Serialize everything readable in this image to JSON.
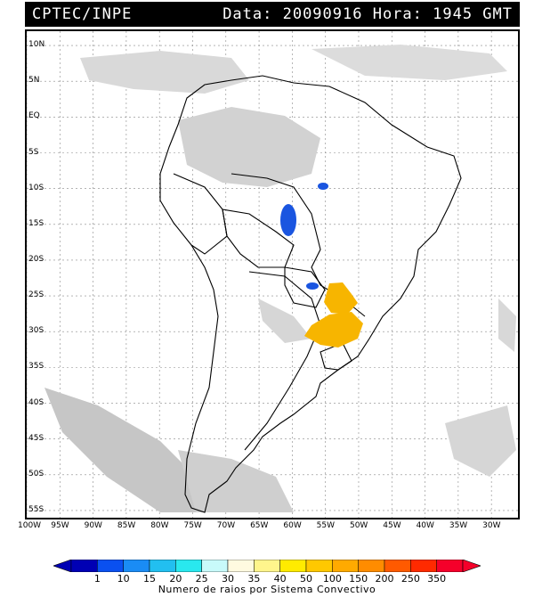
{
  "header": {
    "source": "CPTEC/INPE",
    "datetime": "Data: 20090916 Hora: 1945 GMT"
  },
  "map": {
    "lat_labels": [
      "10N",
      "5N",
      "EQ",
      "5S",
      "10S",
      "15S",
      "20S",
      "25S",
      "30S",
      "35S",
      "40S",
      "45S",
      "50S",
      "55S"
    ],
    "lat_values": [
      10,
      5,
      0,
      -5,
      -10,
      -15,
      -20,
      -25,
      -30,
      -35,
      -40,
      -45,
      -50,
      -55
    ],
    "lon_labels": [
      "100W",
      "95W",
      "90W",
      "85W",
      "80W",
      "75W",
      "70W",
      "65W",
      "60W",
      "55W",
      "50W",
      "45W",
      "40W",
      "35W",
      "30W"
    ],
    "lon_values": [
      -100,
      -95,
      -90,
      -85,
      -80,
      -75,
      -70,
      -65,
      -60,
      -55,
      -50,
      -45,
      -40,
      -35,
      -30
    ],
    "extent": {
      "lon_min": -100,
      "lon_max": -26,
      "lat_min": -56,
      "lat_max": 12
    },
    "grid": true,
    "cloud_color": "#c8c8c8",
    "lightning_clusters": [
      {
        "name": "north-blue",
        "color": "#1a55e0"
      },
      {
        "name": "mato-grosso-blue",
        "color": "#1a55e0"
      },
      {
        "name": "paraguay-blue",
        "color": "#1a55e0"
      },
      {
        "name": "parana-orange",
        "color": "#f7b500"
      },
      {
        "name": "rio-grande-orange",
        "color": "#f7b500"
      }
    ]
  },
  "colorbar": {
    "labels": [
      "1",
      "10",
      "15",
      "20",
      "25",
      "30",
      "35",
      "40",
      "50",
      "100",
      "150",
      "200",
      "250",
      "350"
    ],
    "colors": [
      "#0000b4",
      "#0a50f0",
      "#1a8cf5",
      "#22bff0",
      "#29e8ee",
      "#c8fafa",
      "#fffae0",
      "#fff58c",
      "#ffeb00",
      "#ffc800",
      "#ffaa00",
      "#ff8c00",
      "#ff5a00",
      "#ff2a00",
      "#f5002a"
    ],
    "caption": "Numero de raios por Sistema Convectivo"
  }
}
